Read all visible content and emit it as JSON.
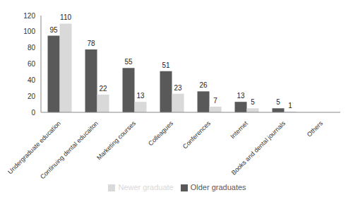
{
  "chart_data": {
    "type": "bar",
    "categories": [
      "Undergraduate education",
      "Continuing dental educaiton",
      "Marketing courses",
      "Colleagues",
      "Conferences",
      "Internet",
      "Books and dental journals",
      "Others"
    ],
    "series": [
      {
        "name": "Older graduates",
        "color": "#595959",
        "values": [
          95,
          78,
          55,
          51,
          26,
          13,
          5,
          0
        ]
      },
      {
        "name": "Newer graduate",
        "color": "#d9d9d9",
        "values": [
          110,
          22,
          13,
          23,
          7,
          5,
          1,
          0
        ]
      }
    ],
    "ylim": [
      0,
      120
    ],
    "yticks": [
      0,
      20,
      40,
      60,
      80,
      100,
      120
    ],
    "grid": false,
    "data_labels": true,
    "legend": "bottom"
  }
}
